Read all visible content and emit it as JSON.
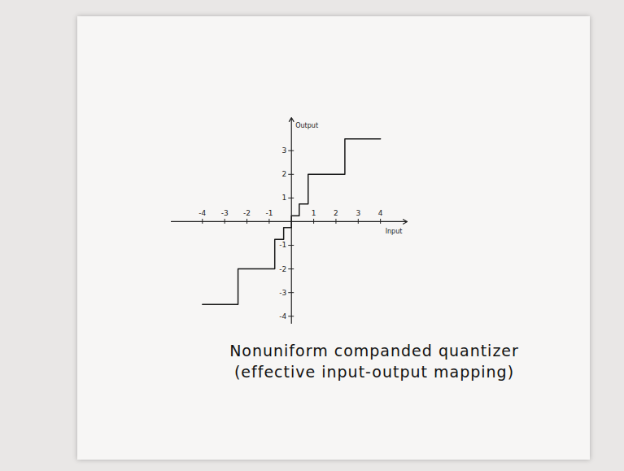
{
  "chart_data": {
    "type": "step",
    "caption": "Nonuniform companded quantizer (effective input-output mapping)",
    "x_label": "Input",
    "y_label": "Output",
    "x": [
      -4,
      -2.4,
      -0.75,
      -0.35,
      0,
      0.35,
      0.75,
      2.4,
      4
    ],
    "values": [
      -3.5,
      -2,
      -0.75,
      -0.25,
      0.25,
      0.75,
      2,
      3.5,
      3.5
    ],
    "color": "#1a1a1a",
    "xlim": [
      -5.4,
      5.2
    ],
    "ylim": [
      -4.3,
      4.4
    ],
    "xticks": [
      -4,
      -3,
      -2,
      -1,
      1,
      2,
      3,
      4
    ],
    "yticks": [
      3,
      2,
      1,
      -1,
      -2,
      -3,
      -4
    ],
    "grid": false
  }
}
